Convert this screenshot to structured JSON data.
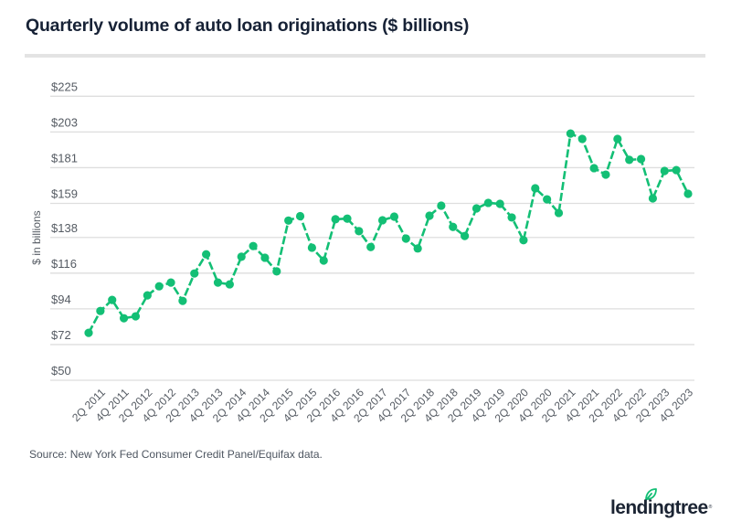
{
  "header": {
    "title": "Quarterly volume of auto loan originations ($ billions)"
  },
  "footer": {
    "source": "Source: New York Fed Consumer Credit Panel/Equifax data.",
    "logo_text": "lendingtree",
    "logo_mark": "®",
    "logo_icon": "leaf-icon"
  },
  "colors": {
    "line": "#13bf75",
    "grid": "#dedede",
    "text": "#555b63",
    "title": "#172236",
    "logo_text": "#1b2433",
    "logo_leaf": "#13bf75"
  },
  "chart_data": {
    "type": "line",
    "title": "Quarterly volume of auto loan originations ($ billions)",
    "xlabel": "",
    "ylabel": "$ in billions",
    "ylim": [
      50,
      225
    ],
    "yticks": [
      50,
      72,
      94,
      116,
      138,
      159,
      181,
      203,
      225
    ],
    "ytick_labels": [
      "$50",
      "$72",
      "$94",
      "$116",
      "$138",
      "$159",
      "$181",
      "$203",
      "$225"
    ],
    "grid": true,
    "legend": "none",
    "line_style": "dashed",
    "markers": true,
    "x": [
      "1Q 2011",
      "2Q 2011",
      "3Q 2011",
      "4Q 2011",
      "1Q 2012",
      "2Q 2012",
      "3Q 2012",
      "4Q 2012",
      "1Q 2013",
      "2Q 2013",
      "3Q 2013",
      "4Q 2013",
      "1Q 2014",
      "2Q 2014",
      "3Q 2014",
      "4Q 2014",
      "1Q 2015",
      "2Q 2015",
      "3Q 2015",
      "4Q 2015",
      "1Q 2016",
      "2Q 2016",
      "3Q 2016",
      "4Q 2016",
      "1Q 2017",
      "2Q 2017",
      "3Q 2017",
      "4Q 2017",
      "1Q 2018",
      "2Q 2018",
      "3Q 2018",
      "4Q 2018",
      "1Q 2019",
      "2Q 2019",
      "3Q 2019",
      "4Q 2019",
      "1Q 2020",
      "2Q 2020",
      "3Q 2020",
      "4Q 2020",
      "1Q 2021",
      "2Q 2021",
      "3Q 2021",
      "4Q 2021",
      "1Q 2022",
      "2Q 2022",
      "3Q 2022",
      "4Q 2022",
      "1Q 2023",
      "2Q 2023",
      "3Q 2023",
      "4Q 2023"
    ],
    "xtick_labels": [
      "2Q 2011",
      "4Q 2011",
      "2Q 2012",
      "4Q 2012",
      "2Q 2013",
      "4Q 2013",
      "2Q 2014",
      "4Q 2014",
      "2Q 2015",
      "4Q 2015",
      "2Q 2016",
      "4Q 2016",
      "2Q 2017",
      "4Q 2017",
      "2Q 2018",
      "4Q 2018",
      "2Q 2019",
      "4Q 2019",
      "2Q 2020",
      "4Q 2020",
      "2Q 2021",
      "4Q 2021",
      "2Q 2022",
      "4Q 2022",
      "2Q 2023",
      "4Q 2023"
    ],
    "series": [
      {
        "name": "Auto loan originations",
        "values": [
          79.2,
          92.7,
          99.5,
          88.2,
          89.4,
          102.3,
          107.9,
          110.2,
          98.9,
          115.8,
          127.6,
          110.2,
          109.1,
          126.1,
          132.7,
          125.5,
          117.1,
          148.4,
          151.1,
          131.7,
          123.8,
          149.2,
          149.6,
          141.9,
          132.1,
          148.6,
          150.8,
          137.3,
          131.2,
          151.4,
          157.6,
          144.5,
          138.9,
          155.9,
          159.3,
          158.7,
          150.3,
          136.3,
          168.3,
          161.5,
          153.1,
          202.0,
          198.7,
          180.7,
          176.7,
          198.7,
          185.8,
          186.3,
          162.1,
          179.0,
          179.5,
          164.9
        ]
      }
    ]
  }
}
